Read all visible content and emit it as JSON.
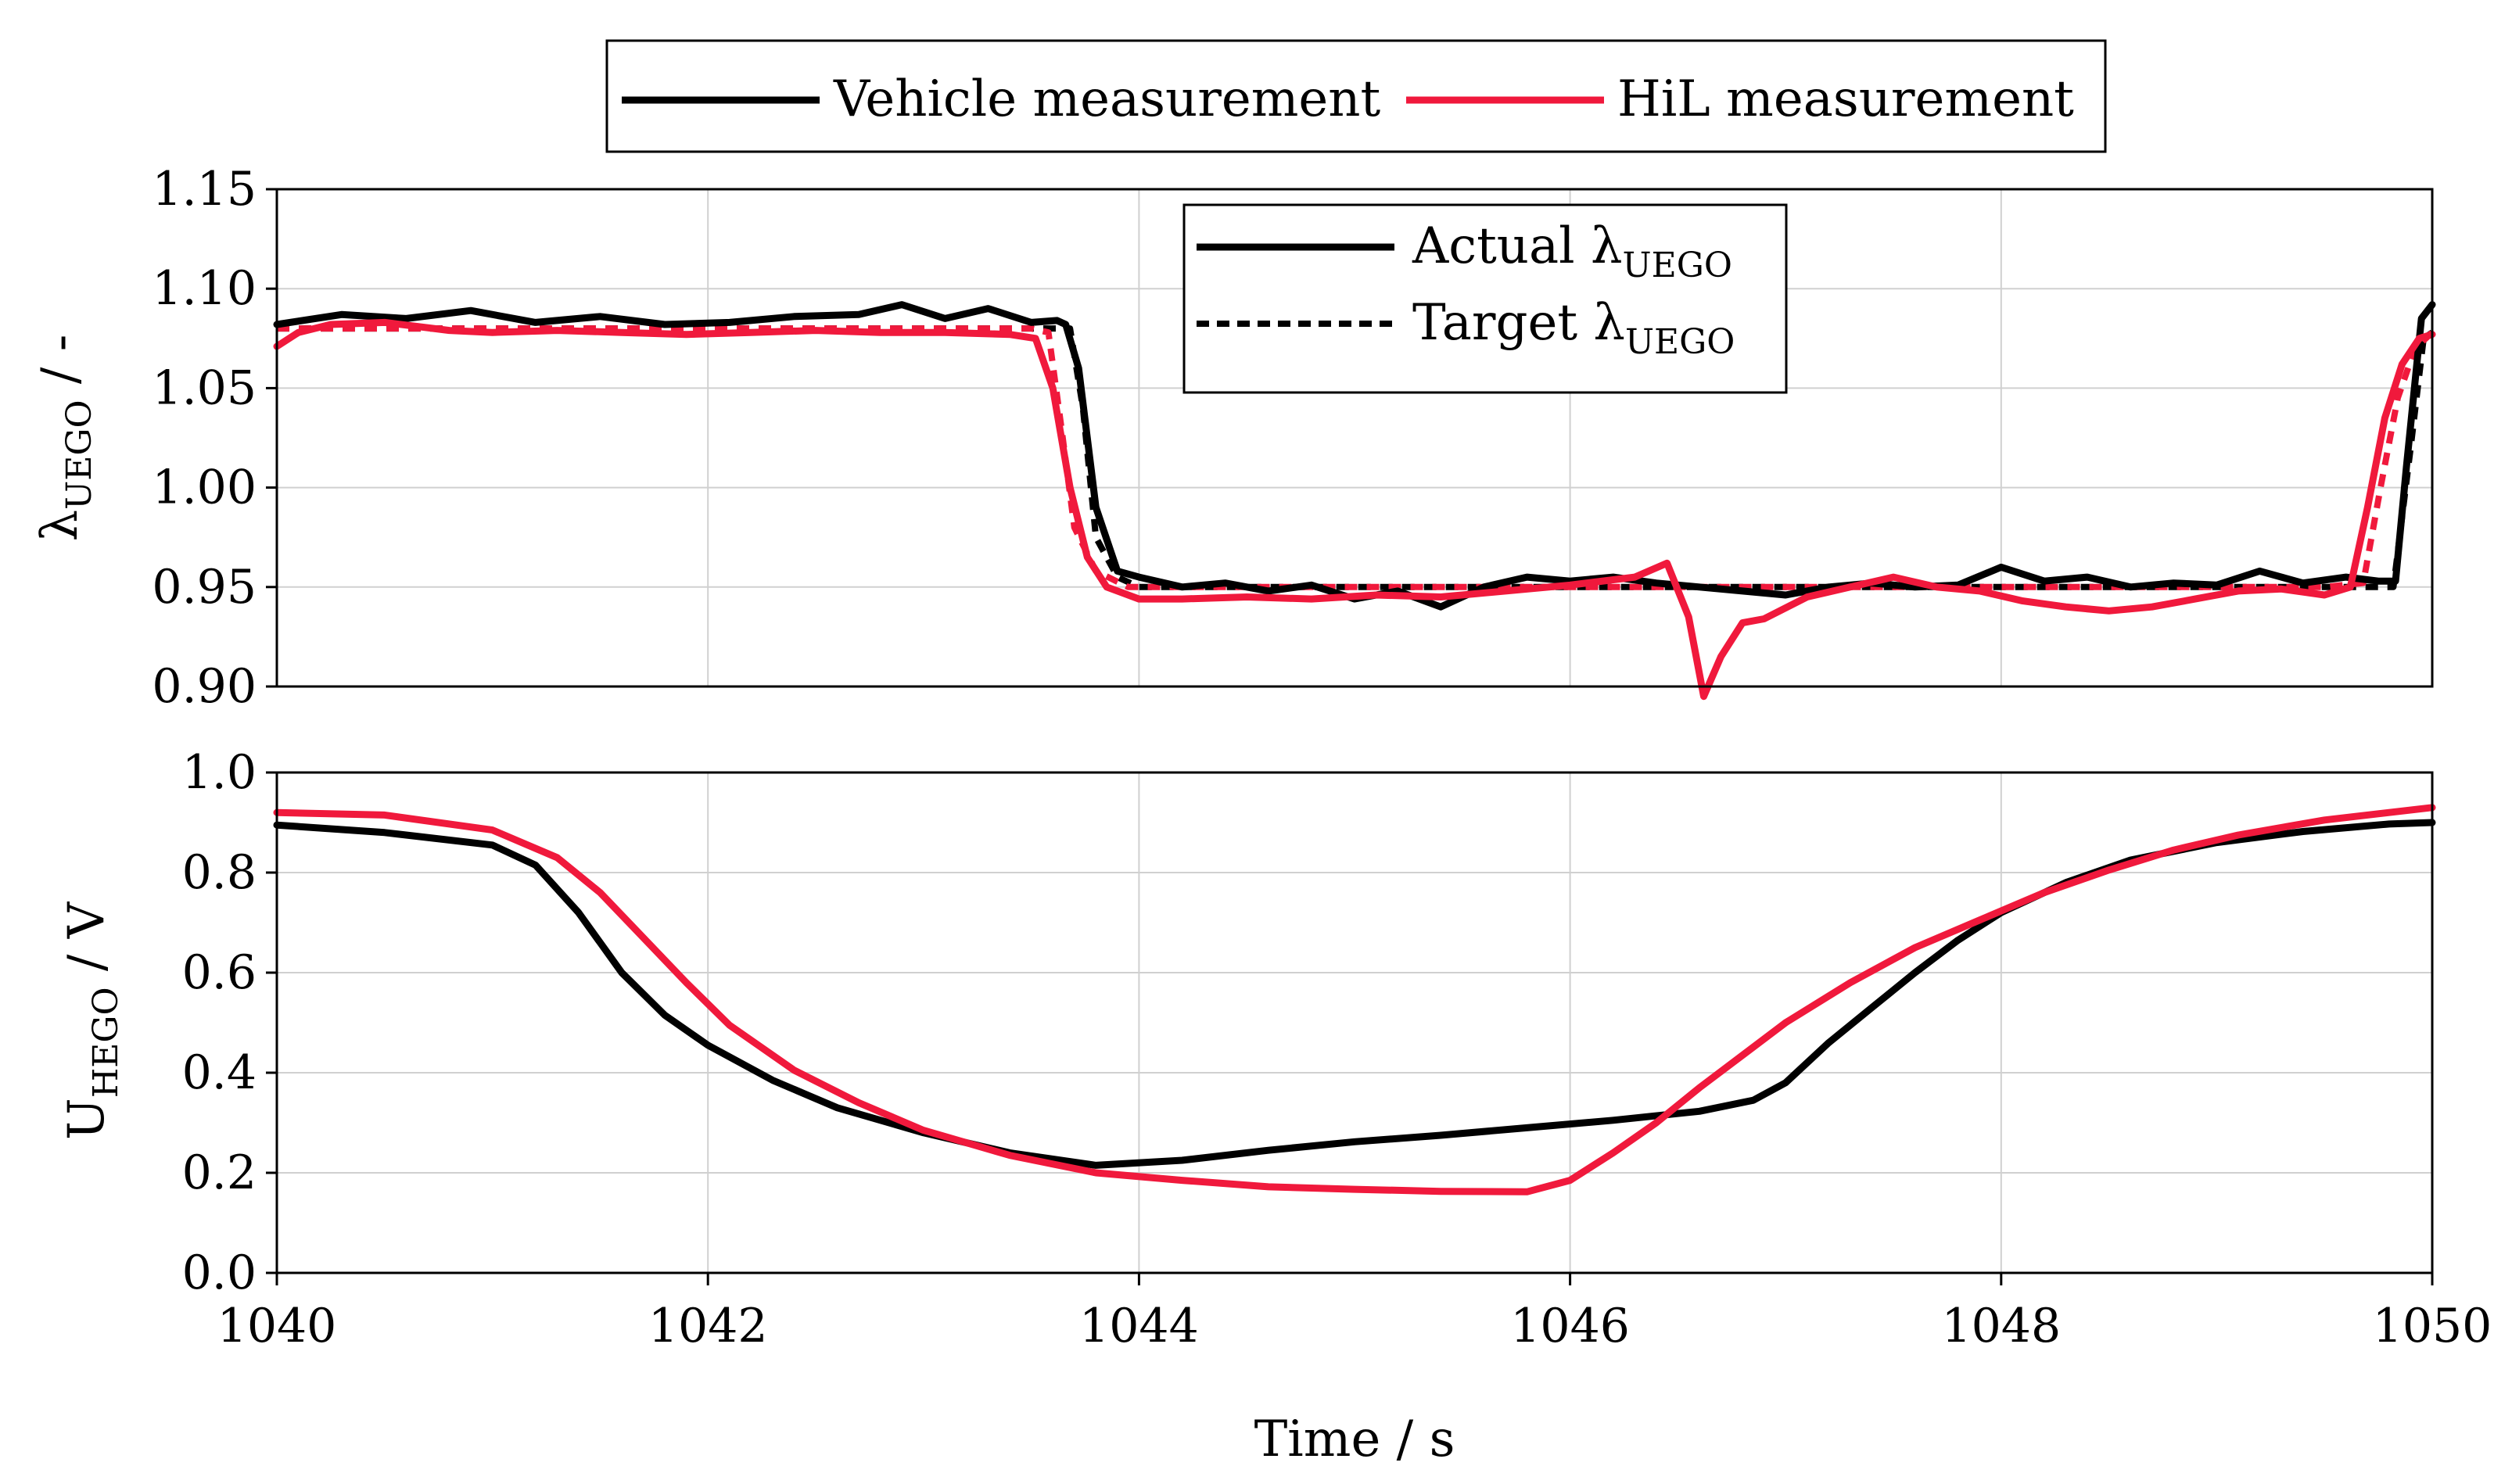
{
  "chart_data": {
    "type": "line",
    "x_label": "Time / s",
    "x_range": [
      1040,
      1050
    ],
    "x_ticks": [
      "1040",
      "1042",
      "1044",
      "1046",
      "1048",
      "1050"
    ],
    "colors": {
      "vehicle": "#000000",
      "hil": "#f0193c",
      "grid": "#d0d0d0"
    },
    "figure_legend": [
      {
        "label": "Vehicle measurement",
        "color": "#000000"
      },
      {
        "label": "HiL measurement",
        "color": "#f0193c"
      }
    ],
    "panels": [
      {
        "id": "lambda",
        "y_label_main": "λ",
        "y_label_sub": "UEGO",
        "y_label_suffix": " / -",
        "y_range": [
          0.9,
          1.15
        ],
        "y_ticks": [
          "1.15",
          "1.10",
          "1.05",
          "1.00",
          "0.95",
          "0.90"
        ],
        "legend": [
          {
            "label_main": "Actual λ",
            "label_sub": "UEGO",
            "style": "solid"
          },
          {
            "label_main": "Target λ",
            "label_sub": "UEGO",
            "style": "dashed"
          }
        ],
        "series": [
          {
            "name": "Vehicle actual λUEGO",
            "color": "#000000",
            "style": "solid",
            "x": [
              1040,
              1040.3,
              1040.6,
              1040.9,
              1041.2,
              1041.5,
              1041.8,
              1042.1,
              1042.4,
              1042.7,
              1042.9,
              1043.1,
              1043.3,
              1043.5,
              1043.62,
              1043.66,
              1043.72,
              1043.8,
              1043.9,
              1044.0,
              1044.2,
              1044.4,
              1044.6,
              1044.8,
              1045.0,
              1045.2,
              1045.4,
              1045.6,
              1045.8,
              1046.0,
              1046.2,
              1046.4,
              1046.6,
              1046.8,
              1047.0,
              1047.2,
              1047.4,
              1047.6,
              1047.8,
              1048.0,
              1048.2,
              1048.4,
              1048.6,
              1048.8,
              1049.0,
              1049.2,
              1049.4,
              1049.6,
              1049.75,
              1049.83,
              1049.88,
              1049.95,
              1050.0
            ],
            "y": [
              1.082,
              1.087,
              1.085,
              1.089,
              1.083,
              1.086,
              1.082,
              1.083,
              1.086,
              1.087,
              1.092,
              1.085,
              1.09,
              1.083,
              1.084,
              1.082,
              1.06,
              0.99,
              0.958,
              0.955,
              0.95,
              0.952,
              0.948,
              0.951,
              0.944,
              0.948,
              0.94,
              0.95,
              0.955,
              0.953,
              0.955,
              0.952,
              0.95,
              0.948,
              0.946,
              0.95,
              0.952,
              0.95,
              0.951,
              0.96,
              0.953,
              0.955,
              0.95,
              0.952,
              0.951,
              0.958,
              0.952,
              0.955,
              0.953,
              0.953,
              1.01,
              1.085,
              1.092
            ]
          },
          {
            "name": "Vehicle target λUEGO",
            "color": "#000000",
            "style": "dashed",
            "x": [
              1040,
              1040.5,
              1041.0,
              1041.5,
              1042.0,
              1042.5,
              1043.0,
              1043.5,
              1043.68,
              1043.74,
              1043.8,
              1043.9,
              1044.0,
              1044.5,
              1045.0,
              1045.5,
              1046.0,
              1046.5,
              1047.0,
              1047.5,
              1048.0,
              1048.5,
              1049.0,
              1049.5,
              1049.82,
              1049.9,
              1049.96,
              1050.0
            ],
            "y": [
              1.08,
              1.08,
              1.08,
              1.08,
              1.08,
              1.08,
              1.08,
              1.08,
              1.08,
              1.04,
              0.975,
              0.955,
              0.95,
              0.95,
              0.95,
              0.95,
              0.95,
              0.95,
              0.95,
              0.95,
              0.95,
              0.95,
              0.95,
              0.95,
              0.95,
              1.02,
              1.075,
              1.078
            ]
          },
          {
            "name": "HiL actual λUEGO",
            "color": "#f0193c",
            "style": "solid",
            "x": [
              1040,
              1040.1,
              1040.25,
              1040.5,
              1040.8,
              1041.0,
              1041.3,
              1041.6,
              1041.9,
              1042.2,
              1042.5,
              1042.8,
              1043.1,
              1043.4,
              1043.52,
              1043.6,
              1043.68,
              1043.76,
              1043.85,
              1044.0,
              1044.2,
              1044.5,
              1044.8,
              1045.1,
              1045.4,
              1045.7,
              1046.0,
              1046.3,
              1046.45,
              1046.55,
              1046.62,
              1046.7,
              1046.8,
              1046.9,
              1047.1,
              1047.3,
              1047.5,
              1047.7,
              1047.9,
              1048.1,
              1048.3,
              1048.5,
              1048.7,
              1048.9,
              1049.1,
              1049.3,
              1049.5,
              1049.62,
              1049.7,
              1049.78,
              1049.86,
              1049.94,
              1050.0
            ],
            "y": [
              1.071,
              1.078,
              1.082,
              1.083,
              1.079,
              1.078,
              1.079,
              1.078,
              1.077,
              1.078,
              1.079,
              1.078,
              1.078,
              1.077,
              1.075,
              1.05,
              1.0,
              0.965,
              0.95,
              0.944,
              0.944,
              0.945,
              0.944,
              0.946,
              0.945,
              0.948,
              0.951,
              0.955,
              0.962,
              0.935,
              0.895,
              0.915,
              0.932,
              0.934,
              0.945,
              0.95,
              0.955,
              0.95,
              0.948,
              0.943,
              0.94,
              0.938,
              0.94,
              0.944,
              0.948,
              0.949,
              0.946,
              0.95,
              0.99,
              1.035,
              1.062,
              1.075,
              1.077
            ]
          },
          {
            "name": "HiL target λUEGO",
            "color": "#f0193c",
            "style": "dashed",
            "x": [
              1040,
              1040.5,
              1041.0,
              1041.5,
              1042.0,
              1042.5,
              1043.0,
              1043.5,
              1043.58,
              1043.64,
              1043.7,
              1043.8,
              1043.95,
              1044.5,
              1045.0,
              1045.5,
              1046.0,
              1046.5,
              1047.0,
              1047.5,
              1048.0,
              1048.5,
              1049.0,
              1049.5,
              1049.68,
              1049.76,
              1049.84,
              1049.92,
              1050.0
            ],
            "y": [
              1.08,
              1.08,
              1.08,
              1.08,
              1.08,
              1.08,
              1.08,
              1.08,
              1.078,
              1.03,
              0.98,
              0.958,
              0.95,
              0.95,
              0.95,
              0.95,
              0.95,
              0.95,
              0.95,
              0.95,
              0.95,
              0.95,
              0.95,
              0.95,
              0.952,
              1.0,
              1.045,
              1.07,
              1.078
            ]
          }
        ]
      },
      {
        "id": "hego",
        "y_label_main": "U",
        "y_label_sub": "HEGO",
        "y_label_suffix": " / V",
        "y_range": [
          0.0,
          1.0
        ],
        "y_ticks": [
          "1.0",
          "0.8",
          "0.6",
          "0.4",
          "0.2",
          "0.0"
        ],
        "series": [
          {
            "name": "Vehicle U_HEGO",
            "color": "#000000",
            "style": "solid",
            "x": [
              1040,
              1040.5,
              1041.0,
              1041.2,
              1041.4,
              1041.6,
              1041.8,
              1042.0,
              1042.3,
              1042.6,
              1043.0,
              1043.4,
              1043.8,
              1044.2,
              1044.6,
              1045.0,
              1045.4,
              1045.8,
              1046.2,
              1046.6,
              1046.85,
              1047.0,
              1047.2,
              1047.4,
              1047.6,
              1047.8,
              1048.0,
              1048.3,
              1048.6,
              1049.0,
              1049.4,
              1049.8,
              1050.0
            ],
            "y": [
              0.895,
              0.88,
              0.855,
              0.815,
              0.72,
              0.6,
              0.515,
              0.455,
              0.385,
              0.33,
              0.28,
              0.24,
              0.215,
              0.225,
              0.245,
              0.262,
              0.275,
              0.29,
              0.305,
              0.323,
              0.345,
              0.38,
              0.46,
              0.53,
              0.6,
              0.665,
              0.72,
              0.78,
              0.825,
              0.86,
              0.882,
              0.897,
              0.9
            ]
          },
          {
            "name": "HiL U_HEGO",
            "color": "#f0193c",
            "style": "solid",
            "x": [
              1040,
              1040.5,
              1041.0,
              1041.3,
              1041.5,
              1041.7,
              1041.9,
              1042.1,
              1042.4,
              1042.7,
              1043.0,
              1043.4,
              1043.8,
              1044.2,
              1044.6,
              1045.0,
              1045.4,
              1045.8,
              1046.0,
              1046.2,
              1046.4,
              1046.6,
              1046.8,
              1047.0,
              1047.3,
              1047.6,
              1047.9,
              1048.2,
              1048.5,
              1048.8,
              1049.1,
              1049.5,
              1050.0
            ],
            "y": [
              0.92,
              0.915,
              0.885,
              0.83,
              0.76,
              0.67,
              0.58,
              0.495,
              0.405,
              0.34,
              0.285,
              0.235,
              0.2,
              0.185,
              0.172,
              0.167,
              0.163,
              0.162,
              0.185,
              0.24,
              0.3,
              0.37,
              0.435,
              0.5,
              0.58,
              0.65,
              0.705,
              0.76,
              0.805,
              0.845,
              0.875,
              0.905,
              0.93
            ]
          }
        ]
      }
    ]
  }
}
